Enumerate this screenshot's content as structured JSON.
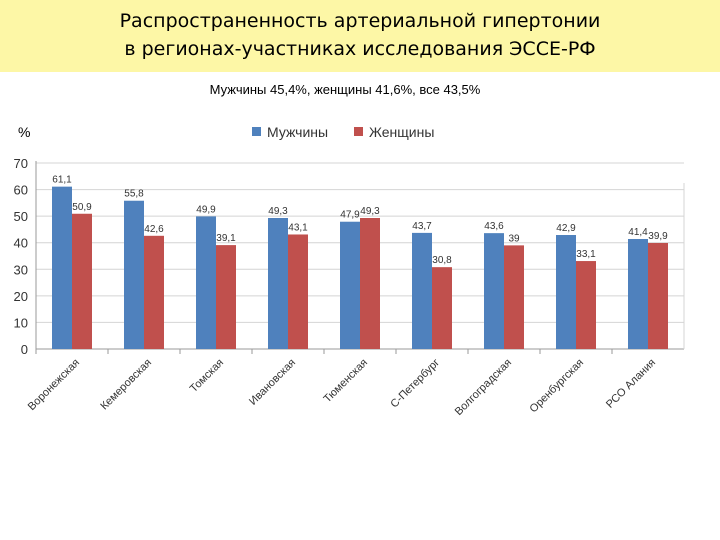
{
  "title_line1": "Распространенность артериальной гипертонии",
  "title_line2": "в регионах-участниках исследования ЭССЕ-РФ",
  "subtitle": "Мужчины 45,4%, женщины 41,6%, все 43,5%",
  "colors": {
    "men": "#4f81bd",
    "women": "#c0504d",
    "title_bg": "#fdf7a6"
  },
  "chart_data": {
    "type": "bar",
    "ylabel": "%",
    "ylim": [
      0,
      70
    ],
    "yticks": [
      0,
      10,
      20,
      30,
      40,
      50,
      60,
      70
    ],
    "legend_position": "top",
    "grid": true,
    "categories": [
      "Воронежская",
      "Кемеровская",
      "Томская",
      "Ивановская",
      "Тюменская",
      "С-Петербург",
      "Волгоградская",
      "Оренбургская",
      "РСО Алания"
    ],
    "series": [
      {
        "name": "Мужчины",
        "color": "#4f81bd",
        "values": [
          61.1,
          55.8,
          49.9,
          49.3,
          47.9,
          43.7,
          43.6,
          42.9,
          41.4
        ],
        "labels": [
          "61,1",
          "55,8",
          "49,9",
          "49,3",
          "47,9",
          "43,7",
          "43,6",
          "42,9",
          "41,4"
        ]
      },
      {
        "name": "Женщины",
        "color": "#c0504d",
        "values": [
          50.9,
          42.6,
          39.1,
          43.1,
          49.3,
          30.8,
          39,
          33.1,
          39.9
        ],
        "labels": [
          "50,9",
          "42,6",
          "39,1",
          "43,1",
          "49,3",
          "30,8",
          "39",
          "33,1",
          "39,9"
        ]
      }
    ]
  }
}
